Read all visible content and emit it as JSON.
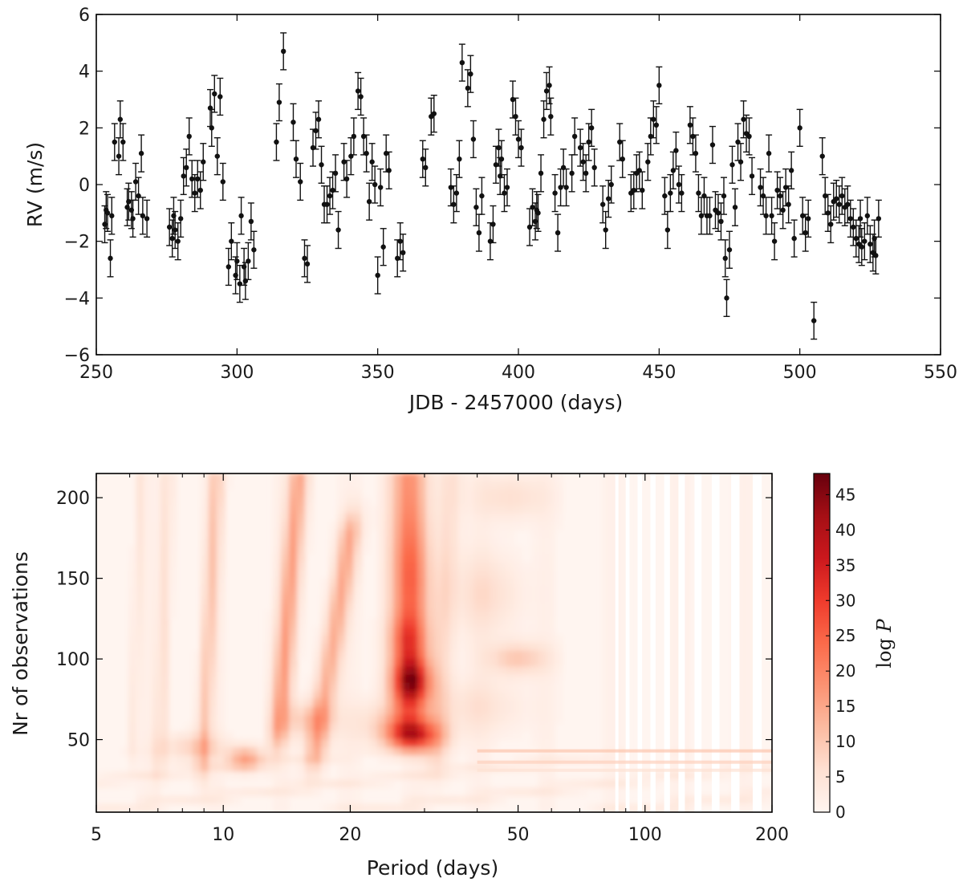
{
  "chart_data": [
    {
      "type": "scatter",
      "title": "",
      "xlabel": "JDB - 2457000 (days)",
      "ylabel": "RV (m/s)",
      "xlim": [
        250,
        550
      ],
      "ylim": [
        -6,
        6
      ],
      "xticks": [
        250,
        300,
        350,
        400,
        450,
        500,
        550
      ],
      "yticks": [
        -6,
        -4,
        -2,
        0,
        2,
        4,
        6
      ],
      "error_bar": 0.65,
      "points": [
        [
          253,
          -1.4
        ],
        [
          253.5,
          -0.9
        ],
        [
          254,
          -1.0
        ],
        [
          255,
          -2.6
        ],
        [
          255.5,
          -1.1
        ],
        [
          256.5,
          1.5
        ],
        [
          258,
          1.0
        ],
        [
          258.5,
          2.3
        ],
        [
          259.5,
          1.5
        ],
        [
          261,
          -0.8
        ],
        [
          261.5,
          -0.6
        ],
        [
          262.5,
          -0.9
        ],
        [
          263,
          -1.2
        ],
        [
          264,
          0.1
        ],
        [
          265,
          -0.4
        ],
        [
          266,
          1.1
        ],
        [
          266.5,
          -1.1
        ],
        [
          268,
          -1.2
        ],
        [
          276,
          -1.5
        ],
        [
          277,
          -1.9
        ],
        [
          277.5,
          -1.1
        ],
        [
          278,
          -1.6
        ],
        [
          279,
          -2.0
        ],
        [
          280,
          -1.2
        ],
        [
          281,
          0.3
        ],
        [
          282,
          0.6
        ],
        [
          283,
          1.7
        ],
        [
          284,
          0.2
        ],
        [
          285,
          -0.3
        ],
        [
          286,
          0.2
        ],
        [
          287,
          -0.2
        ],
        [
          288,
          0.8
        ],
        [
          290.5,
          2.7
        ],
        [
          291,
          2.0
        ],
        [
          292,
          3.2
        ],
        [
          293,
          1.0
        ],
        [
          294,
          3.1
        ],
        [
          295,
          0.1
        ],
        [
          297,
          -2.9
        ],
        [
          298,
          -2.0
        ],
        [
          299.5,
          -3.2
        ],
        [
          300,
          -2.7
        ],
        [
          301,
          -3.5
        ],
        [
          301.5,
          -1.1
        ],
        [
          302.5,
          -2.9
        ],
        [
          303,
          -3.4
        ],
        [
          304,
          -2.7
        ],
        [
          305,
          -1.3
        ],
        [
          306,
          -2.3
        ],
        [
          314,
          1.5
        ],
        [
          315,
          2.9
        ],
        [
          316.5,
          4.7
        ],
        [
          320,
          2.2
        ],
        [
          321,
          0.9
        ],
        [
          322.5,
          0.1
        ],
        [
          324,
          -2.6
        ],
        [
          325,
          -2.8
        ],
        [
          327,
          1.3
        ],
        [
          328,
          1.9
        ],
        [
          329,
          2.3
        ],
        [
          330,
          0.7
        ],
        [
          331,
          -0.7
        ],
        [
          332,
          -0.7
        ],
        [
          333,
          -0.4
        ],
        [
          334,
          -0.2
        ],
        [
          335,
          0.4
        ],
        [
          336,
          -1.6
        ],
        [
          338,
          0.8
        ],
        [
          339,
          0.2
        ],
        [
          340.5,
          1.0
        ],
        [
          341.5,
          1.7
        ],
        [
          343,
          3.3
        ],
        [
          344,
          3.1
        ],
        [
          345,
          1.7
        ],
        [
          346,
          1.1
        ],
        [
          347,
          -0.6
        ],
        [
          348,
          0.8
        ],
        [
          349,
          0.0
        ],
        [
          350,
          -3.2
        ],
        [
          351,
          -0.1
        ],
        [
          352,
          -2.2
        ],
        [
          353,
          1.1
        ],
        [
          354,
          0.5
        ],
        [
          357,
          -2.6
        ],
        [
          358,
          -2.0
        ],
        [
          359,
          -2.4
        ],
        [
          366,
          0.9
        ],
        [
          367,
          0.6
        ],
        [
          369,
          2.4
        ],
        [
          370,
          2.5
        ],
        [
          376,
          -0.1
        ],
        [
          377,
          -0.7
        ],
        [
          378,
          -0.3
        ],
        [
          379,
          0.9
        ],
        [
          380,
          4.3
        ],
        [
          382,
          3.4
        ],
        [
          383,
          3.9
        ],
        [
          384,
          1.6
        ],
        [
          385,
          -0.8
        ],
        [
          386,
          -1.7
        ],
        [
          387,
          -0.4
        ],
        [
          390,
          -2.0
        ],
        [
          391,
          -1.4
        ],
        [
          392,
          0.7
        ],
        [
          393,
          1.3
        ],
        [
          393.5,
          0.3
        ],
        [
          394,
          0.9
        ],
        [
          395,
          -0.3
        ],
        [
          396,
          -0.1
        ],
        [
          398,
          3.0
        ],
        [
          399,
          2.4
        ],
        [
          400,
          1.6
        ],
        [
          401,
          1.3
        ],
        [
          404,
          -1.5
        ],
        [
          405,
          -0.8
        ],
        [
          406,
          -1.3
        ],
        [
          406.5,
          -0.9
        ],
        [
          407,
          -1.0
        ],
        [
          408,
          0.4
        ],
        [
          409,
          2.3
        ],
        [
          410,
          3.3
        ],
        [
          411,
          3.5
        ],
        [
          411.5,
          2.4
        ],
        [
          413,
          -0.3
        ],
        [
          414,
          -1.7
        ],
        [
          415,
          -0.1
        ],
        [
          416,
          0.6
        ],
        [
          417,
          -0.1
        ],
        [
          419,
          0.4
        ],
        [
          420,
          1.7
        ],
        [
          422,
          1.3
        ],
        [
          423,
          0.8
        ],
        [
          424,
          0.4
        ],
        [
          425,
          1.5
        ],
        [
          426,
          2.0
        ],
        [
          427,
          0.6
        ],
        [
          430,
          -0.7
        ],
        [
          431,
          -1.6
        ],
        [
          432,
          -0.5
        ],
        [
          433,
          0.0
        ],
        [
          436,
          1.5
        ],
        [
          437,
          0.9
        ],
        [
          440,
          -0.3
        ],
        [
          441,
          -0.2
        ],
        [
          442,
          0.4
        ],
        [
          443,
          0.5
        ],
        [
          444,
          -0.2
        ],
        [
          446,
          0.8
        ],
        [
          447,
          1.7
        ],
        [
          448,
          2.3
        ],
        [
          449,
          2.1
        ],
        [
          450,
          3.5
        ],
        [
          452,
          -0.4
        ],
        [
          453,
          -1.6
        ],
        [
          454,
          -0.3
        ],
        [
          455,
          0.5
        ],
        [
          456,
          1.2
        ],
        [
          457,
          0.0
        ],
        [
          458,
          -0.3
        ],
        [
          461,
          2.1
        ],
        [
          462,
          1.7
        ],
        [
          463,
          1.1
        ],
        [
          464,
          -0.3
        ],
        [
          465,
          -1.1
        ],
        [
          466,
          -0.4
        ],
        [
          467,
          -1.1
        ],
        [
          468,
          -1.1
        ],
        [
          469,
          1.4
        ],
        [
          470,
          -0.9
        ],
        [
          471,
          -1.0
        ],
        [
          472,
          -1.3
        ],
        [
          473,
          -0.4
        ],
        [
          473.5,
          -2.6
        ],
        [
          474,
          -4.0
        ],
        [
          475,
          -2.3
        ],
        [
          476,
          0.7
        ],
        [
          477,
          -0.8
        ],
        [
          478,
          1.5
        ],
        [
          479,
          0.8
        ],
        [
          480,
          2.3
        ],
        [
          481,
          1.8
        ],
        [
          482,
          1.7
        ],
        [
          483,
          0.3
        ],
        [
          486,
          -0.1
        ],
        [
          487,
          -0.4
        ],
        [
          488,
          -1.1
        ],
        [
          489,
          1.1
        ],
        [
          490,
          -1.1
        ],
        [
          491,
          -2.0
        ],
        [
          492,
          -0.2
        ],
        [
          493,
          -0.4
        ],
        [
          494,
          -0.9
        ],
        [
          495,
          -0.1
        ],
        [
          496,
          -0.7
        ],
        [
          497,
          0.5
        ],
        [
          498,
          -1.9
        ],
        [
          500,
          2.0
        ],
        [
          501,
          -1.1
        ],
        [
          502,
          -1.7
        ],
        [
          503,
          -1.2
        ],
        [
          505,
          -4.8
        ],
        [
          508,
          1.0
        ],
        [
          509,
          -0.4
        ],
        [
          510,
          -1.0
        ],
        [
          511,
          -1.4
        ],
        [
          512,
          -0.6
        ],
        [
          513,
          -0.5
        ],
        [
          514,
          -0.7
        ],
        [
          515,
          -0.4
        ],
        [
          516,
          -0.8
        ],
        [
          517,
          -0.7
        ],
        [
          518,
          -1.2
        ],
        [
          519,
          -1.5
        ],
        [
          520,
          -1.9
        ],
        [
          521,
          -2.1
        ],
        [
          521.5,
          -1.2
        ],
        [
          522,
          -2.2
        ],
        [
          523,
          -2.0
        ],
        [
          524,
          -1.1
        ],
        [
          525,
          -2.1
        ],
        [
          526,
          -2.4
        ],
        [
          526.5,
          -1.9
        ],
        [
          527,
          -2.5
        ],
        [
          528,
          -1.2
        ]
      ]
    },
    {
      "type": "heatmap",
      "title": "",
      "xlabel": "Period (days)",
      "ylabel": "Nr of observations",
      "xscale": "log",
      "xlim": [
        5,
        200
      ],
      "ylim": [
        5,
        215
      ],
      "xticks": [
        5,
        10,
        20,
        50,
        100,
        200
      ],
      "yticks": [
        50,
        100,
        150,
        200
      ],
      "colormap": "Reds",
      "colorbar_label": "log P",
      "colorbar_range": [
        0,
        48
      ],
      "colorbar_ticks": [
        0,
        5,
        10,
        15,
        20,
        25,
        30,
        35,
        40,
        45
      ],
      "peaks": [
        {
          "period": 28,
          "n_obs": 86,
          "logP": 48
        },
        {
          "period": 28,
          "n_obs": 52,
          "logP": 42
        },
        {
          "period": 28,
          "n_obs": 110,
          "logP": 36
        },
        {
          "period": 28,
          "n_obs": 150,
          "logP": 30
        },
        {
          "period": 28,
          "n_obs": 200,
          "logP": 26
        },
        {
          "period": 14,
          "n_obs": 130,
          "logP": 24
        },
        {
          "period": 18,
          "n_obs": 100,
          "logP": 24
        },
        {
          "period": 11.3,
          "n_obs": 38,
          "logP": 18
        },
        {
          "period": 9,
          "n_obs": 150,
          "logP": 16
        },
        {
          "period": 50,
          "n_obs": 100,
          "logP": 12
        }
      ]
    }
  ]
}
